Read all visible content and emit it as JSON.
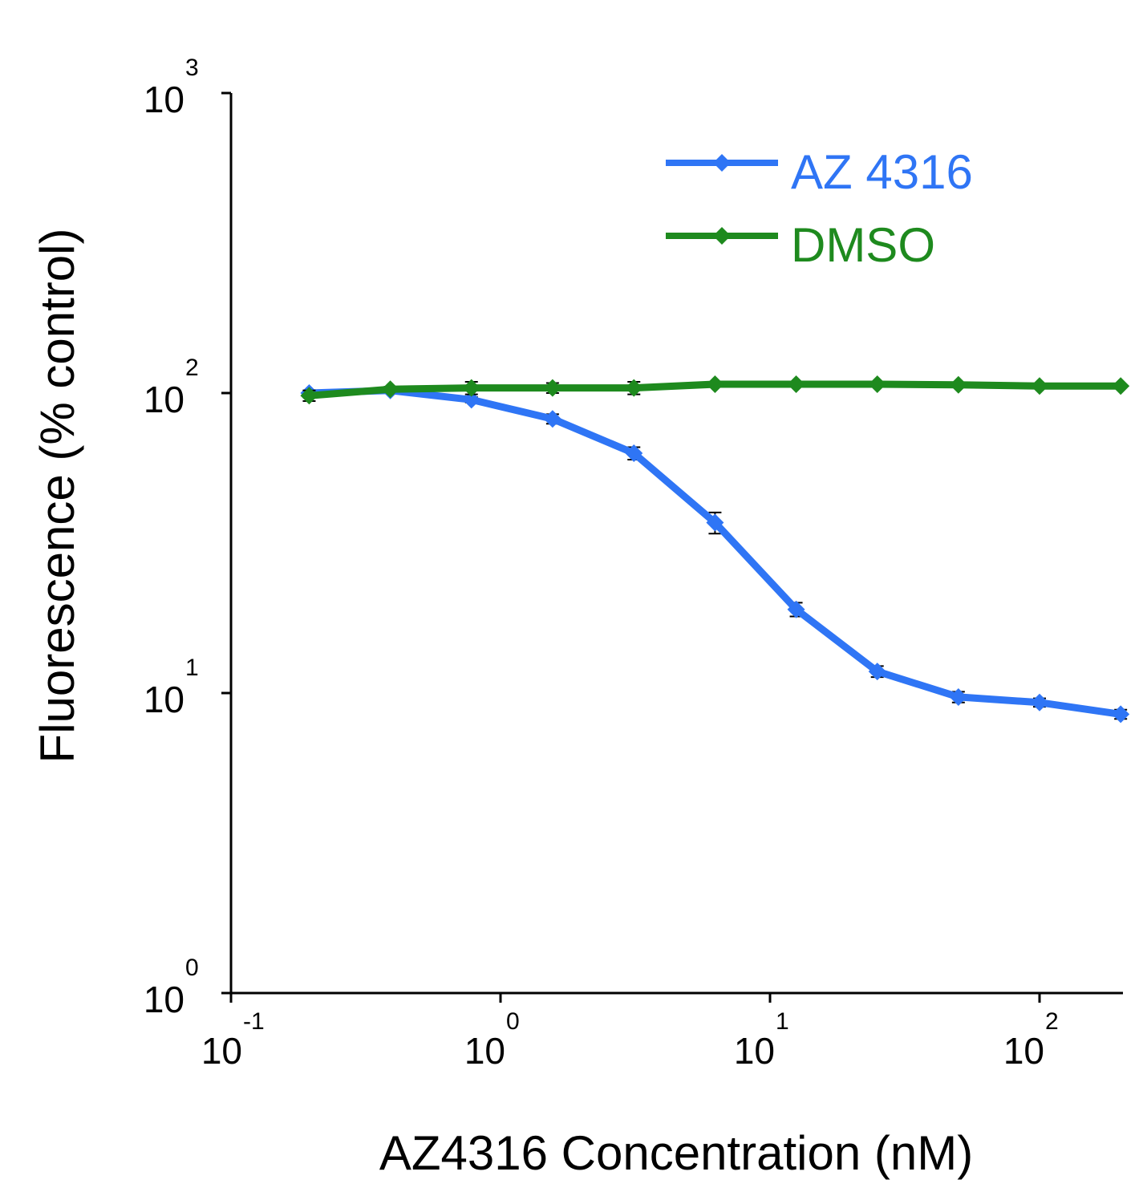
{
  "chart_data": {
    "type": "line",
    "xscale": "log",
    "yscale": "log",
    "xlabel": "AZ4316 Concentration (nM)",
    "ylabel": "Fluorescence (% control)",
    "xlim": [
      0.1,
      210
    ],
    "ylim": [
      1,
      1000
    ],
    "x_ticks": [
      {
        "base": "10",
        "exp": "-1",
        "value": 0.1
      },
      {
        "base": "10",
        "exp": "0",
        "value": 1
      },
      {
        "base": "10",
        "exp": "1",
        "value": 10
      },
      {
        "base": "10",
        "exp": "2",
        "value": 100
      }
    ],
    "y_ticks": [
      {
        "base": "10",
        "exp": "0",
        "value": 1
      },
      {
        "base": "10",
        "exp": "1",
        "value": 10
      },
      {
        "base": "10",
        "exp": "2",
        "value": 100
      },
      {
        "base": "10",
        "exp": "3",
        "value": 1000
      }
    ],
    "legend_position": "top-right",
    "series": [
      {
        "name": "AZ 4316",
        "color": "#2f75f5",
        "x": [
          0.195,
          0.39,
          0.78,
          1.56,
          3.125,
          6.25,
          12.5,
          25,
          50,
          100,
          200
        ],
        "y": [
          100,
          102,
          95,
          82,
          63,
          37,
          19,
          11.8,
          9.7,
          9.3,
          8.5
        ],
        "err": [
          2,
          2,
          2,
          3,
          3,
          3,
          1,
          0.5,
          0.4,
          0.3,
          0.3
        ]
      },
      {
        "name": "DMSO",
        "color": "#1e8a1e",
        "x": [
          0.195,
          0.39,
          0.78,
          1.56,
          3.125,
          6.25,
          12.5,
          25,
          50,
          100,
          200
        ],
        "y": [
          98,
          103,
          104,
          104,
          104,
          107,
          107,
          107,
          106.5,
          105.5,
          105.5
        ],
        "err": [
          4,
          2,
          5,
          4,
          5,
          2,
          1,
          2,
          2,
          1,
          1
        ]
      }
    ]
  }
}
